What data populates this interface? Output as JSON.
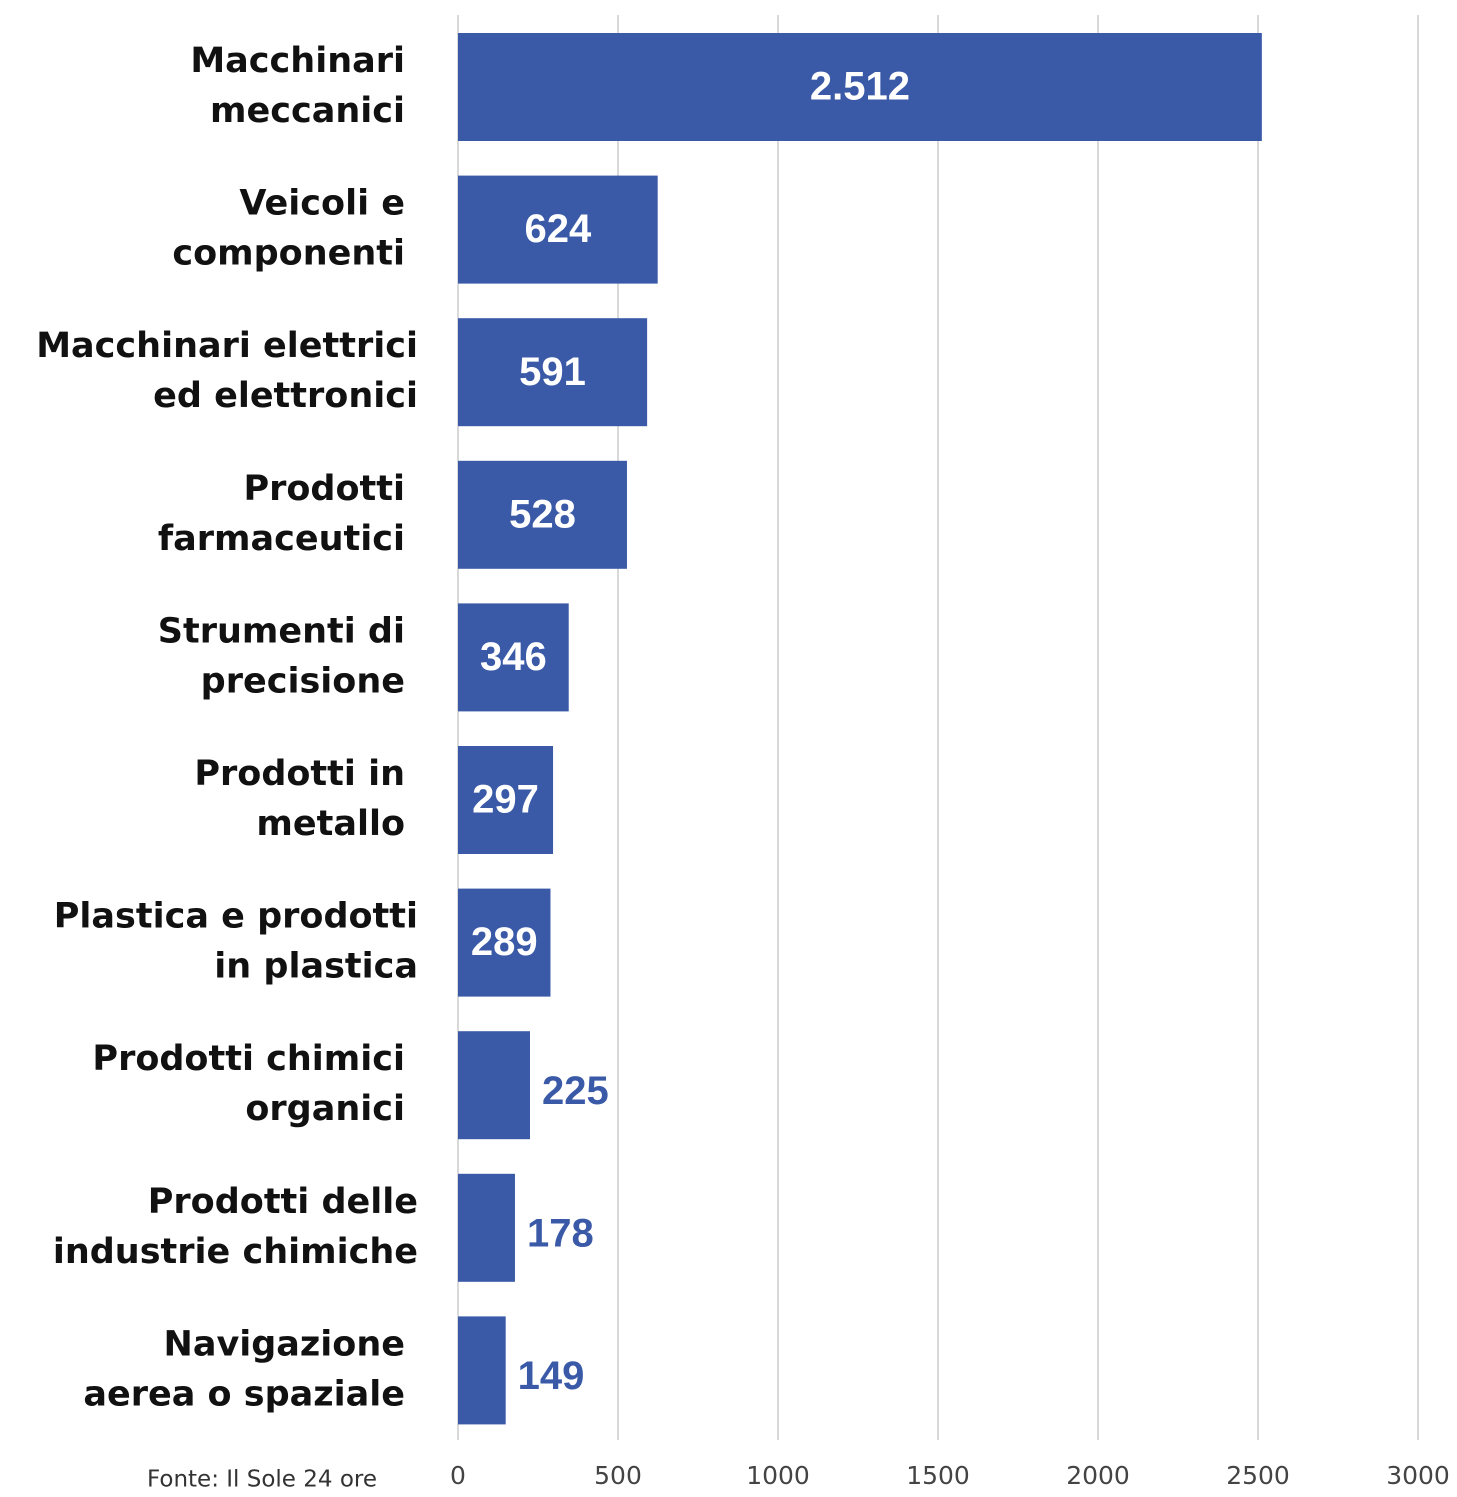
{
  "chart_data": {
    "type": "barh",
    "categories": [
      [
        "Macchinari",
        "meccanici"
      ],
      [
        "Veicoli e",
        "componenti"
      ],
      [
        "Macchinari elettrici",
        "ed elettronici"
      ],
      [
        "Prodotti",
        "farmaceutici"
      ],
      [
        "Strumenti di",
        "precisione"
      ],
      [
        "Prodotti in",
        "metallo"
      ],
      [
        "Plastica e prodotti",
        "in plastica"
      ],
      [
        "Prodotti chimici",
        "organici"
      ],
      [
        "Prodotti delle",
        "industrie chimiche"
      ],
      [
        "Navigazione",
        "aerea o spaziale"
      ]
    ],
    "values": [
      2512,
      624,
      591,
      528,
      346,
      297,
      289,
      225,
      178,
      149
    ],
    "value_labels": [
      "2.512",
      "624",
      "591",
      "528",
      "346",
      "297",
      "289",
      "225",
      "178",
      "149"
    ],
    "color": "#3a5aa8",
    "xlim": [
      0,
      3000
    ],
    "xticks": [
      0,
      500,
      1000,
      1500,
      2000,
      2500,
      3000
    ],
    "grid": true,
    "source": "Fonte: Il Sole 24 ore"
  }
}
